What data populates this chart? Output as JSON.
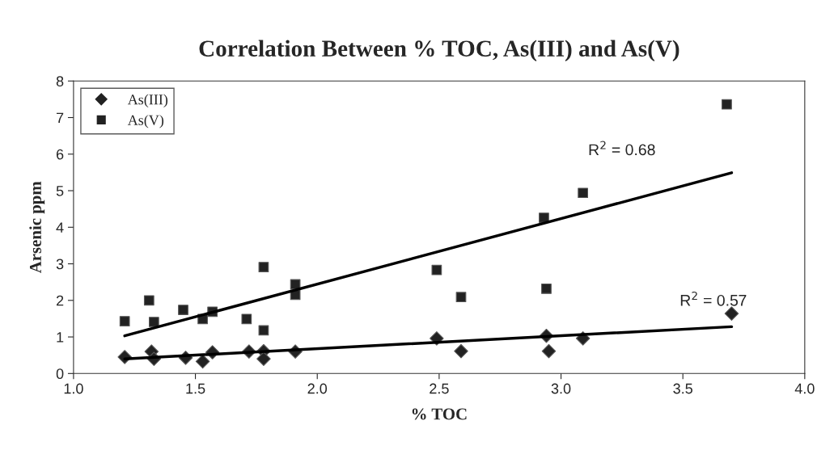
{
  "chart_data": {
    "type": "scatter",
    "title": "Correlation Between % TOC, As(III) and As(V)",
    "xlabel": "% TOC",
    "ylabel": "Arsenic ppm",
    "xlim": [
      1,
      4
    ],
    "ylim": [
      0,
      8
    ],
    "xticks": [
      {
        "value": 1,
        "label": "1.0"
      },
      {
        "value": 1.5,
        "label": "1.5"
      },
      {
        "value": 2,
        "label": "2.0"
      },
      {
        "value": 2.5,
        "label": "2.5"
      },
      {
        "value": 3,
        "label": "3.0"
      },
      {
        "value": 3.5,
        "label": "3.5"
      },
      {
        "value": 4,
        "label": "4.0"
      }
    ],
    "yticks": [
      0,
      1,
      2,
      3,
      4,
      5,
      6,
      7,
      8
    ],
    "grid": false,
    "legend": "top left",
    "series": [
      {
        "name": "As(III)",
        "color": "#222222",
        "marker": "diamond",
        "x": [
          1.21,
          1.32,
          1.33,
          1.46,
          1.53,
          1.57,
          1.72,
          1.78,
          1.78,
          1.91,
          2.49,
          2.59,
          2.94,
          2.95,
          3.09,
          3.7
        ],
        "values": [
          0.45,
          0.6,
          0.4,
          0.43,
          0.33,
          0.58,
          0.6,
          0.61,
          0.4,
          0.6,
          0.96,
          0.61,
          1.03,
          0.61,
          0.96,
          1.64
        ]
      },
      {
        "name": "As(V)",
        "color": "#222222",
        "marker": "square",
        "x": [
          1.21,
          1.31,
          1.33,
          1.45,
          1.53,
          1.57,
          1.71,
          1.78,
          1.78,
          1.91,
          1.91,
          2.49,
          2.59,
          2.93,
          2.94,
          3.09,
          3.68
        ],
        "values": [
          1.43,
          2.0,
          1.41,
          1.74,
          1.49,
          1.69,
          1.49,
          2.91,
          1.18,
          2.44,
          2.15,
          2.83,
          2.09,
          4.26,
          2.32,
          4.94,
          7.36
        ]
      },
      {
        "type": "line",
        "color": "#000000",
        "marker": "none",
        "x": [
          1.21,
          3.7
        ],
        "values": [
          0.4,
          1.28
        ]
      },
      {
        "type": "line",
        "color": "#000000",
        "marker": "none",
        "x": [
          1.21,
          3.7
        ],
        "values": [
          1.03,
          5.49
        ]
      }
    ],
    "annotations": [
      "R$^{2}$ = 0.68",
      "R$^{2}$ = 0.57"
    ]
  }
}
